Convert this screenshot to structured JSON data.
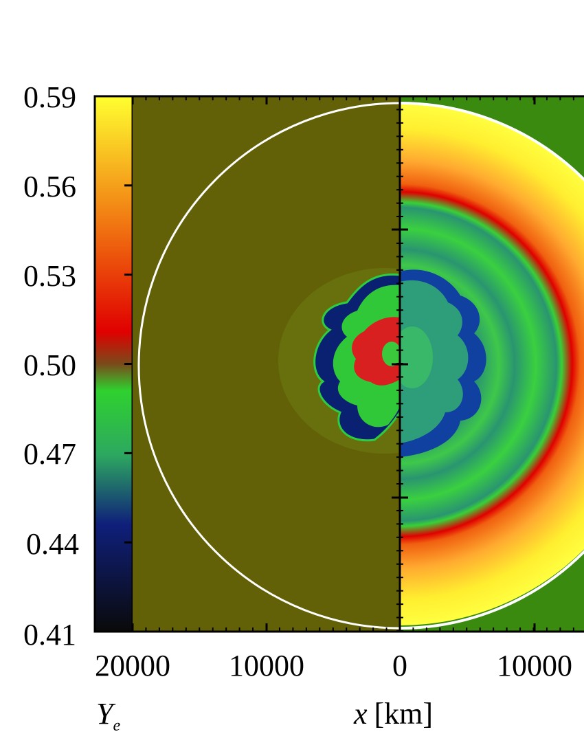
{
  "chart_data": {
    "type": "heatmap",
    "colorbar": {
      "ticks": [
        "0.59",
        "0.56",
        "0.53",
        "0.50",
        "0.47",
        "0.44",
        "0.41"
      ],
      "range": [
        0.41,
        0.59
      ],
      "colors": [
        "#0a0a0a",
        "#0f1f7a",
        "#2da860",
        "#2fd12f",
        "#7a4a1a",
        "#e00000",
        "#f07010",
        "#ffff30"
      ],
      "label_main": "Y",
      "label_sub": "e"
    },
    "x_axis": {
      "ticks": [
        "20000",
        "10000",
        "0",
        "10000"
      ],
      "label_italic": "x",
      "label_unit": "[km]"
    },
    "panels": [
      {
        "name": "left",
        "background": "#636108"
      },
      {
        "name": "right",
        "background": "#3a8a10"
      }
    ]
  }
}
